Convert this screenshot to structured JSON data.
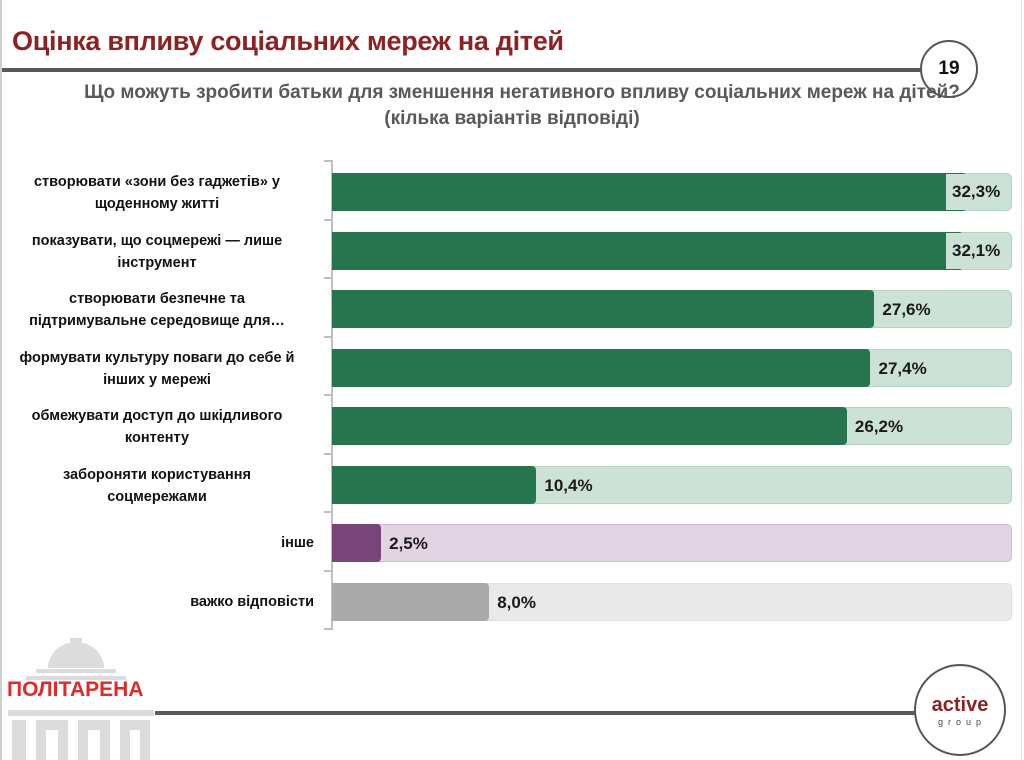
{
  "header": {
    "title": "Оцінка впливу соціальних мереж на дітей",
    "page_number": "19"
  },
  "chart_data": {
    "type": "bar",
    "orientation": "horizontal",
    "title": "Що можуть зробити батьки для зменшення негативного впливу соціальних мереж на дітей?",
    "subtitle": "(кілька варіантів відповіді)",
    "xlabel": "",
    "ylabel": "",
    "unit": "%",
    "xlim": [
      0,
      34.6
    ],
    "grid": false,
    "categories": [
      "створювати «зони без гаджетів» у щоденному житті",
      "показувати, що соцмережі — лише інструмент",
      "створювати безпечне та підтримувальне середовище для…",
      "формувати культуру поваги до себе й інших у мережі",
      "обмежувати доступ до шкідливого контенту",
      "забороняти користування соцмережами",
      "інше",
      "важко відповісти"
    ],
    "label_lines": [
      [
        "створювати «зони без гаджетів» у",
        "щоденному житті"
      ],
      [
        "показувати, що соцмережі — лише",
        "інструмент"
      ],
      [
        "створювати безпечне та",
        "підтримувальне середовище для…"
      ],
      [
        "формувати культуру поваги до себе й",
        "інших у мережі"
      ],
      [
        "обмежувати доступ до шкідливого",
        "контенту"
      ],
      [
        "забороняти користування",
        "соцмережами"
      ],
      [
        "інше"
      ],
      [
        "важко відповісти"
      ]
    ],
    "values": [
      32.3,
      32.1,
      27.6,
      27.4,
      26.2,
      10.4,
      2.5,
      8.0
    ],
    "value_labels": [
      "32,3%",
      "32,1%",
      "27,6%",
      "27,4%",
      "26,2%",
      "10,4%",
      "2,5%",
      "8,0%"
    ],
    "bar_colors": [
      "#27754f",
      "#27754f",
      "#27754f",
      "#27754f",
      "#27754f",
      "#27754f",
      "#77457a",
      "#a9a9a9"
    ],
    "track_colors": [
      "#cde2d7",
      "#cde2d7",
      "#cde2d7",
      "#cde2d7",
      "#cde2d7",
      "#cde2d7",
      "#e2d4e2",
      "#e9e9e9"
    ],
    "track_border_colors": [
      "#b5d3c3",
      "#b5d3c3",
      "#b5d3c3",
      "#b5d3c3",
      "#b5d3c3",
      "#b5d3c3",
      "#d3b7d6",
      "#dedede"
    ]
  },
  "footer": {
    "left_logo_text": "ПОЛІТАРЕНА",
    "right_logo_text": "active",
    "right_logo_subtext": "group"
  },
  "colors": {
    "title": "#8e2222",
    "subtitle": "#595959",
    "rule": "#595959",
    "logo_red": "#e02a2a"
  }
}
